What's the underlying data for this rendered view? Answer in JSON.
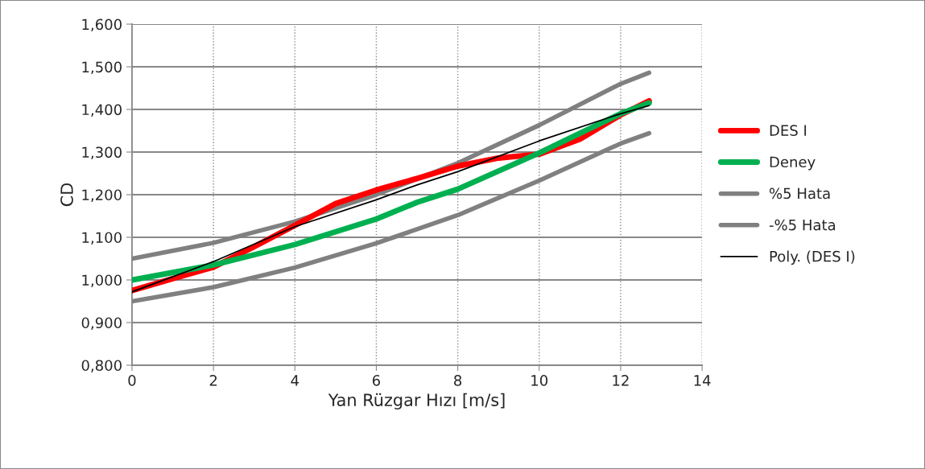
{
  "chart_data": {
    "type": "line",
    "xlabel": "Yan Rüzgar Hızı [m/s]",
    "ylabel": "CD",
    "xlim": [
      0,
      14
    ],
    "xticks": [
      0,
      2,
      4,
      6,
      8,
      10,
      12,
      14
    ],
    "ylim": [
      0.8,
      1.6
    ],
    "yticks": [
      {
        "value": 0.8,
        "label": "0,800"
      },
      {
        "value": 0.9,
        "label": "0,900"
      },
      {
        "value": 1.0,
        "label": "1,000"
      },
      {
        "value": 1.1,
        "label": "1,100"
      },
      {
        "value": 1.2,
        "label": "1,200"
      },
      {
        "value": 1.3,
        "label": "1,300"
      },
      {
        "value": 1.4,
        "label": "1,400"
      },
      {
        "value": 1.5,
        "label": "1,500"
      },
      {
        "value": 1.6,
        "label": "1,600"
      }
    ],
    "grid": true,
    "legend": "right",
    "marker": "none",
    "line_style": "solid",
    "series": [
      {
        "name": "DES I",
        "color": "#ff0000",
        "x": [
          0,
          1,
          2,
          3,
          4,
          5,
          6,
          7,
          8,
          9,
          10,
          11,
          12,
          12.7
        ],
        "values": [
          0.975,
          1.003,
          1.03,
          1.078,
          1.128,
          1.179,
          1.211,
          1.238,
          1.267,
          1.286,
          1.295,
          1.33,
          1.387,
          1.42
        ]
      },
      {
        "name": "Deney",
        "color": "#00b050",
        "x": [
          0,
          2,
          4,
          6,
          7,
          8,
          10,
          12,
          12.7
        ],
        "values": [
          1.0,
          1.035,
          1.083,
          1.143,
          1.182,
          1.213,
          1.298,
          1.39,
          1.415
        ]
      },
      {
        "name": "%5 Hata",
        "color": "#808080",
        "x": [
          0,
          2,
          4,
          6,
          8,
          10,
          12,
          12.7
        ],
        "values": [
          1.05,
          1.087,
          1.137,
          1.2,
          1.274,
          1.363,
          1.46,
          1.486
        ]
      },
      {
        "name": "-%5 Hata",
        "color": "#808080",
        "x": [
          0,
          2,
          4,
          6,
          8,
          10,
          12,
          12.7
        ],
        "values": [
          0.95,
          0.983,
          1.029,
          1.086,
          1.152,
          1.233,
          1.32,
          1.344
        ]
      },
      {
        "name": "Poly. (DES I)",
        "color": "#000000",
        "x": [
          0,
          2,
          4,
          6,
          7,
          8,
          10,
          12,
          12.7
        ],
        "values": [
          0.972,
          1.043,
          1.125,
          1.188,
          1.223,
          1.254,
          1.326,
          1.39,
          1.409
        ]
      }
    ]
  }
}
